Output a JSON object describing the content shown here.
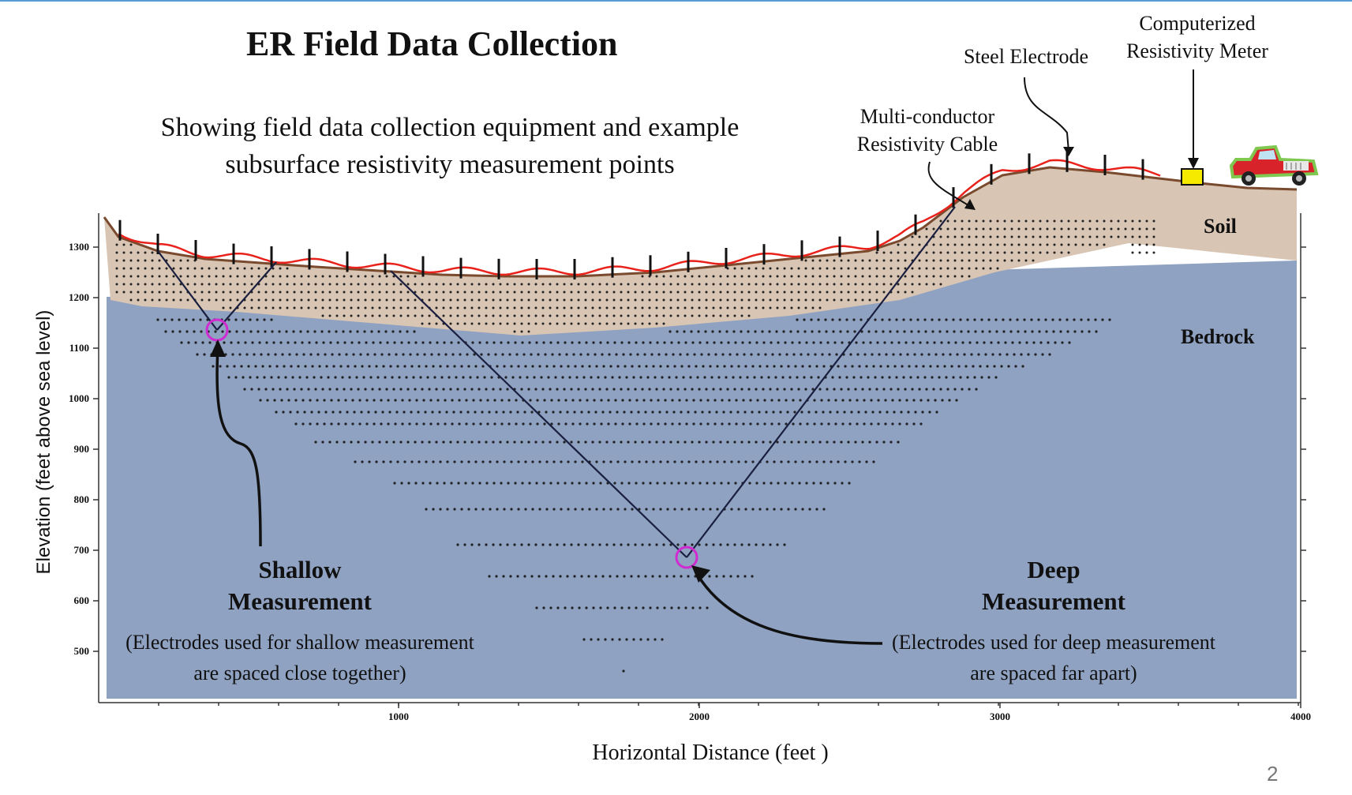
{
  "title": "ER Field Data Collection",
  "subtitle": "Showing field data collection equipment and example subsurface resistivity measurement points",
  "callouts": {
    "meter": "Computerized Resistivity Meter",
    "electrode": "Steel Electrode",
    "cable": "Multi-conductor Resistivity Cable"
  },
  "layers": {
    "soil": "Soil",
    "bedrock": "Bedrock"
  },
  "shallow": {
    "heading": "Shallow Measurement",
    "note": "(Electrodes used for shallow measurement are spaced close together)"
  },
  "deep": {
    "heading": "Deep Measurement",
    "note": "(Electrodes used for deep measurement are spaced far apart)"
  },
  "axes": {
    "x_label": "Horizontal Distance (feet )",
    "y_label": "Elevation (feet above sea level)",
    "x_ticks": [
      "1000",
      "2000",
      "3000",
      "4000"
    ],
    "y_ticks": [
      "1300",
      "1200",
      "1100",
      "1000",
      "900",
      "800",
      "700",
      "600",
      "500"
    ]
  },
  "page_number": "2",
  "colors": {
    "soil": "#d9c5b3",
    "bedrock": "#8fa2c2",
    "cable": "#e8221b",
    "surface": "#7a4a2e",
    "marker": "#d02bd0",
    "meter": "#f5ea00",
    "truck": "#d9232a"
  },
  "icons": [
    "truck-icon",
    "resistivity-meter-icon",
    "electrode-icon"
  ]
}
